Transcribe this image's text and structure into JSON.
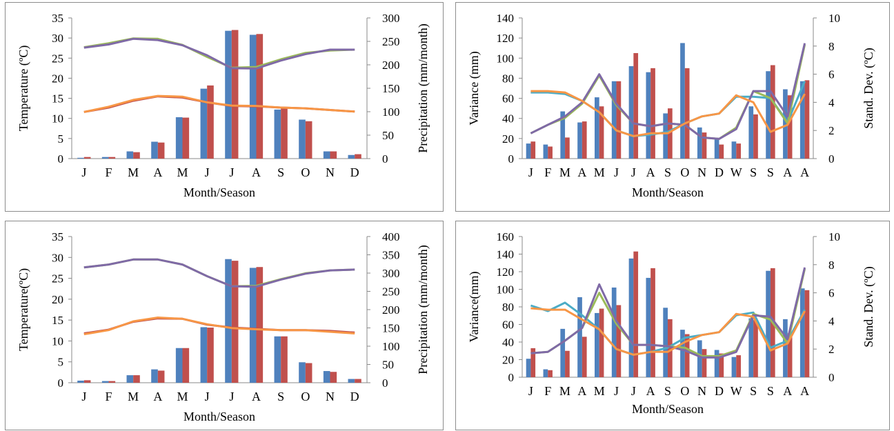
{
  "chart_data": [
    {
      "type": "bar+line",
      "categories": [
        "J",
        "F",
        "M",
        "A",
        "M",
        "J",
        "J",
        "A",
        "S",
        "O",
        "N",
        "D"
      ],
      "xlabel": "Month/Season",
      "ylabel": "Temperature (ºC)",
      "y2label": "Precipitation (mm/month)",
      "yticks": [
        "0",
        "5",
        "10",
        "15",
        "20",
        "25",
        "30",
        "35"
      ],
      "y2ticks": [
        "0",
        "50",
        "100",
        "150",
        "200",
        "250",
        "300"
      ],
      "ylim": [
        0,
        35
      ],
      "y2lim": [
        0,
        300
      ],
      "colors": {
        "bar_a": "#4F81BD",
        "bar_b": "#C0504D",
        "line_purple": "#7F6AA6",
        "line_green": "#9BBB59",
        "line_orange": "#F79646",
        "line_red": "#C0504D"
      },
      "bars": [
        {
          "values": [
            0.2,
            0.4,
            1.8,
            4.2,
            10.3,
            17.4,
            31.8,
            30.8,
            12.2,
            9.7,
            1.8,
            0.9
          ]
        },
        {
          "values": [
            0.4,
            0.4,
            1.6,
            4.0,
            10.2,
            18.2,
            32.0,
            31.0,
            12.5,
            9.3,
            1.8,
            1.1
          ]
        }
      ],
      "lines": [
        {
          "axis": "y",
          "color_key": "line_green",
          "values": [
            27.7,
            28.7,
            29.9,
            29.8,
            28.3,
            25.3,
            22.6,
            22.8,
            24.7,
            26.3,
            26.9,
            27.1
          ]
        },
        {
          "axis": "y",
          "color_key": "line_purple",
          "values": [
            27.6,
            28.4,
            29.8,
            29.5,
            28.2,
            25.7,
            22.5,
            22.4,
            24.4,
            26.0,
            27.1,
            27.1
          ]
        },
        {
          "axis": "y",
          "color_key": "line_red",
          "values": [
            11.6,
            12.7,
            14.4,
            15.5,
            15.2,
            14.0,
            13.1,
            13.0,
            12.7,
            12.5,
            12.1,
            11.7
          ]
        },
        {
          "axis": "y",
          "color_key": "line_orange",
          "values": [
            11.6,
            12.9,
            14.6,
            15.6,
            15.4,
            14.0,
            13.2,
            13.1,
            12.7,
            12.5,
            12.1,
            11.7
          ]
        }
      ]
    },
    {
      "type": "bar+line",
      "categories": [
        "J",
        "F",
        "M",
        "A",
        "M",
        "J",
        "J",
        "A",
        "S",
        "O",
        "N",
        "D",
        "W",
        "S",
        "S",
        "A",
        "A"
      ],
      "xlabel": "Month/Season",
      "ylabel": "Variance (mm)",
      "y2label": "Stand. Dev. (ºC)",
      "yticks": [
        "0",
        "20",
        "40",
        "60",
        "80",
        "100",
        "120",
        "140"
      ],
      "y2ticks": [
        "0",
        "2",
        "4",
        "6",
        "8",
        "10"
      ],
      "ylim": [
        0,
        140
      ],
      "y2lim": [
        0,
        10
      ],
      "colors": {
        "bar_a": "#4F81BD",
        "bar_b": "#C0504D",
        "line_purple": "#7F6AA6",
        "line_green": "#9BBB59",
        "line_orange": "#F79646",
        "line_teal": "#4BACC6"
      },
      "bars": [
        {
          "values": [
            15,
            14,
            47,
            36,
            61,
            77,
            92,
            86,
            45,
            115,
            31,
            19,
            17,
            52,
            87,
            69,
            77
          ]
        },
        {
          "values": [
            17,
            12,
            21,
            37,
            52,
            77,
            105,
            90,
            50,
            90,
            26,
            14,
            15,
            44,
            93,
            63,
            78
          ]
        }
      ],
      "lines": [
        {
          "axis": "y2",
          "color_key": "line_teal",
          "values": [
            4.7,
            4.7,
            4.6,
            4.1,
            3.3,
            2.0,
            1.6,
            1.7,
            1.9,
            2.5,
            3.0,
            3.2,
            4.4,
            4.4,
            4.3,
            2.6,
            5.5
          ]
        },
        {
          "axis": "y2",
          "color_key": "line_green",
          "values": [
            1.8,
            2.4,
            2.9,
            3.9,
            5.9,
            3.8,
            2.5,
            2.3,
            2.5,
            2.4,
            1.5,
            1.4,
            2.2,
            4.8,
            4.3,
            2.5,
            8.1
          ]
        },
        {
          "axis": "y2",
          "color_key": "line_purple",
          "values": [
            1.8,
            2.4,
            3.0,
            4.0,
            6.0,
            3.9,
            2.5,
            2.3,
            2.5,
            2.4,
            1.5,
            1.4,
            2.1,
            4.8,
            4.8,
            3.0,
            8.2
          ]
        },
        {
          "axis": "y2",
          "color_key": "line_orange",
          "values": [
            4.8,
            4.8,
            4.7,
            4.1,
            3.3,
            2.0,
            1.6,
            1.8,
            1.8,
            2.5,
            3.0,
            3.2,
            4.5,
            4.0,
            1.9,
            2.4,
            4.6
          ]
        }
      ]
    },
    {
      "type": "bar+line",
      "categories": [
        "J",
        "F",
        "M",
        "A",
        "M",
        "J",
        "J",
        "A",
        "S",
        "O",
        "N",
        "D"
      ],
      "xlabel": "Month/Season",
      "ylabel": "Temperature(ºC)",
      "y2label": "Precipitation (mm/month)",
      "yticks": [
        "0",
        "5",
        "10",
        "15",
        "20",
        "25",
        "30",
        "35"
      ],
      "y2ticks": [
        "0",
        "50",
        "100",
        "150",
        "200",
        "250",
        "300",
        "350",
        "400"
      ],
      "ylim": [
        0,
        35
      ],
      "y2lim": [
        0,
        400
      ],
      "colors": {
        "bar_a": "#4F81BD",
        "bar_b": "#C0504D",
        "line_purple": "#7F6AA6",
        "line_green": "#9BBB59",
        "line_orange": "#F79646",
        "line_red": "#C0504D"
      },
      "bars": [
        {
          "values": [
            0.5,
            0.4,
            1.8,
            3.2,
            8.3,
            13.3,
            29.6,
            27.5,
            11.1,
            4.9,
            2.8,
            0.9
          ]
        },
        {
          "values": [
            0.6,
            0.4,
            1.8,
            2.9,
            8.3,
            13.2,
            29.2,
            27.7,
            11.1,
            4.7,
            2.6,
            0.9
          ]
        }
      ],
      "lines": [
        {
          "axis": "y",
          "color_key": "line_green",
          "values": [
            27.6,
            28.3,
            29.5,
            29.5,
            28.3,
            25.5,
            23.1,
            23.2,
            24.8,
            26.2,
            26.9,
            27.1
          ]
        },
        {
          "axis": "y",
          "color_key": "line_purple",
          "values": [
            27.6,
            28.3,
            29.5,
            29.5,
            28.3,
            25.5,
            23.1,
            23.0,
            24.7,
            26.1,
            26.9,
            27.1
          ]
        },
        {
          "axis": "y",
          "color_key": "line_red",
          "values": [
            11.8,
            12.7,
            14.6,
            15.4,
            15.3,
            13.9,
            13.2,
            12.9,
            12.6,
            12.6,
            12.4,
            12.0
          ]
        },
        {
          "axis": "y",
          "color_key": "line_orange",
          "values": [
            11.6,
            12.6,
            14.7,
            15.6,
            15.3,
            14.0,
            13.1,
            12.8,
            12.6,
            12.6,
            12.2,
            11.8
          ]
        }
      ]
    },
    {
      "type": "bar+line",
      "categories": [
        "J",
        "F",
        "M",
        "A",
        "M",
        "J",
        "J",
        "A",
        "S",
        "O",
        "N",
        "D",
        "W",
        "S",
        "S",
        "A",
        "A"
      ],
      "xlabel": "Month/Season",
      "ylabel": "Variance(mm)",
      "y2label": "Stand. Dev. (ºC)",
      "yticks": [
        "0",
        "20",
        "40",
        "60",
        "80",
        "100",
        "120",
        "140",
        "160"
      ],
      "y2ticks": [
        "0",
        "2",
        "4",
        "6",
        "8",
        "10"
      ],
      "ylim": [
        0,
        160
      ],
      "y2lim": [
        0,
        10
      ],
      "colors": {
        "bar_a": "#4F81BD",
        "bar_b": "#C0504D",
        "line_purple": "#7F6AA6",
        "line_green": "#9BBB59",
        "line_orange": "#F79646",
        "line_teal": "#4BACC6"
      },
      "bars": [
        {
          "values": [
            21,
            9,
            55,
            91,
            73,
            102,
            135,
            113,
            79,
            54,
            42,
            31,
            23,
            67,
            121,
            66,
            101
          ]
        },
        {
          "values": [
            33,
            8,
            30,
            46,
            78,
            82,
            143,
            124,
            66,
            49,
            32,
            27,
            25,
            65,
            124,
            50,
            99
          ]
        }
      ],
      "lines": [
        {
          "axis": "y2",
          "color_key": "line_teal",
          "values": [
            5.1,
            4.7,
            5.3,
            4.4,
            3.4,
            2.0,
            1.6,
            1.8,
            2.1,
            2.8,
            3.0,
            3.2,
            4.4,
            4.6,
            2.1,
            2.6,
            4.8
          ]
        },
        {
          "axis": "y2",
          "color_key": "line_green",
          "values": [
            1.7,
            1.8,
            2.6,
            3.5,
            6.0,
            3.8,
            2.3,
            2.3,
            2.2,
            2.1,
            1.5,
            1.5,
            1.9,
            4.5,
            4.1,
            2.4,
            7.7
          ]
        },
        {
          "axis": "y2",
          "color_key": "line_purple",
          "values": [
            1.7,
            1.8,
            2.6,
            3.5,
            6.6,
            4.0,
            2.3,
            2.3,
            2.2,
            1.9,
            1.4,
            1.4,
            1.8,
            4.4,
            4.3,
            2.7,
            7.8
          ]
        },
        {
          "axis": "y2",
          "color_key": "line_orange",
          "values": [
            4.9,
            4.8,
            4.8,
            4.1,
            3.4,
            2.0,
            1.6,
            1.8,
            1.8,
            2.5,
            3.0,
            3.2,
            4.5,
            4.3,
            1.9,
            2.4,
            4.7
          ]
        }
      ]
    }
  ]
}
